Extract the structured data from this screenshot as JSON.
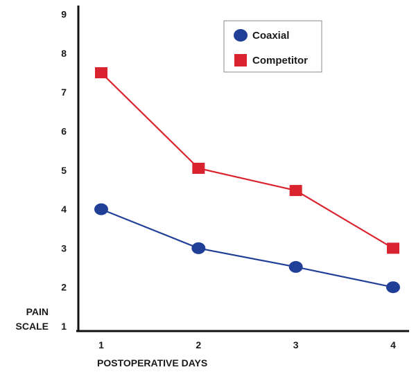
{
  "chart_data": {
    "type": "line",
    "title": "",
    "xlabel": "POSTOPERATIVE DAYS",
    "ylabel_lines": [
      "PAIN",
      "SCALE"
    ],
    "x": [
      1,
      2,
      3,
      4
    ],
    "x_tick_labels": [
      "1",
      "2",
      "3",
      "4"
    ],
    "ylim": [
      1,
      9
    ],
    "y_ticks": [
      1,
      2,
      3,
      4,
      5,
      6,
      7,
      8,
      9
    ],
    "grid": false,
    "legend_position": "top-right",
    "series": [
      {
        "name": "Coaxial",
        "marker": "circle",
        "color": "#223f98",
        "values": [
          4.0,
          3.0,
          2.52,
          2.0
        ]
      },
      {
        "name": "Competitor",
        "marker": "square",
        "color": "#d9232e",
        "values": [
          7.5,
          5.05,
          4.48,
          3.0
        ]
      }
    ]
  }
}
